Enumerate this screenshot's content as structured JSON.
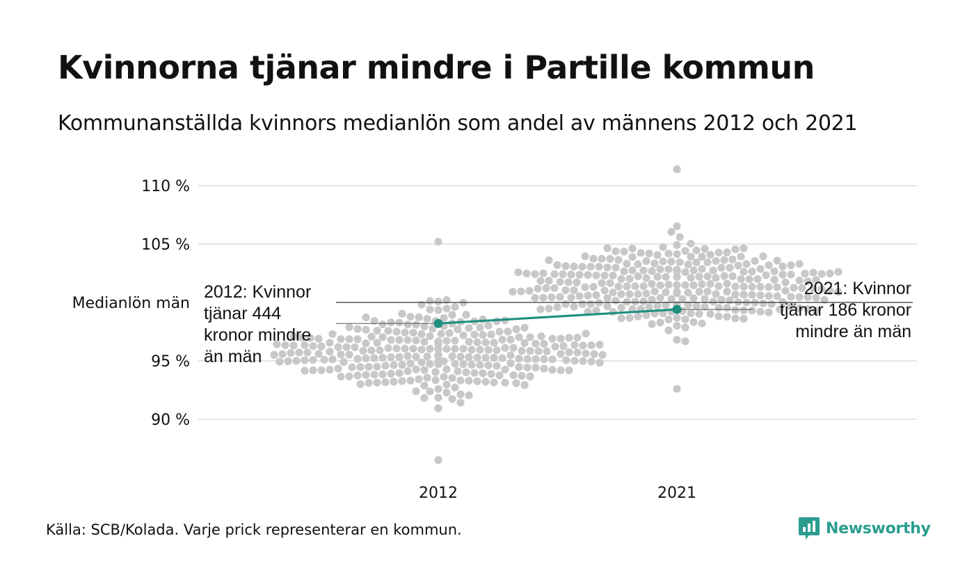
{
  "header": {
    "title": "Kvinnorna tjänar mindre i Partille kommun",
    "subtitle": "Kommunanställda kvinnors medianlön som andel av männens 2012 och 2021"
  },
  "footer": {
    "source": "Källa: SCB/Kolada. Varje prick representerar en kommun.",
    "logo_text": "Newsworthy"
  },
  "colors": {
    "dots": "#c8c8c8",
    "highlight": "#1f8f80",
    "gridline": "#e4e4e4",
    "reference_line": "#333333"
  },
  "chart_data": {
    "type": "scatter",
    "subtype": "beeswarm",
    "categories": [
      "2012",
      "2021"
    ],
    "y_ticks": [
      {
        "value": 90,
        "label": "90 %"
      },
      {
        "value": 95,
        "label": "95 %"
      },
      {
        "value": 105,
        "label": "105 %"
      },
      {
        "value": 110,
        "label": "110 %"
      }
    ],
    "reference": {
      "value": 100,
      "label": "Medianlön män"
    },
    "ylim": [
      86.5,
      111.5
    ],
    "highlight": {
      "series_values": [
        {
          "x": "2012",
          "y": 98.2
        },
        {
          "x": "2021",
          "y": 99.4
        }
      ],
      "annotations": [
        {
          "x": "2012",
          "lines": [
            "2012: Kvinnor",
            "tjänar 444",
            "kronor mindre",
            "än män"
          ]
        },
        {
          "x": "2021",
          "lines": [
            "2021: Kvinnor",
            "tjänar 186 kronor",
            "mindre än män"
          ]
        }
      ]
    },
    "distributions": [
      {
        "x": "2012",
        "count": 290,
        "min": 86.5,
        "max": 105.2,
        "median": 96.0
      },
      {
        "x": "2021",
        "count": 290,
        "min": 92.6,
        "max": 111.4,
        "median": 101.5
      }
    ],
    "grid": true,
    "legend": "none"
  }
}
